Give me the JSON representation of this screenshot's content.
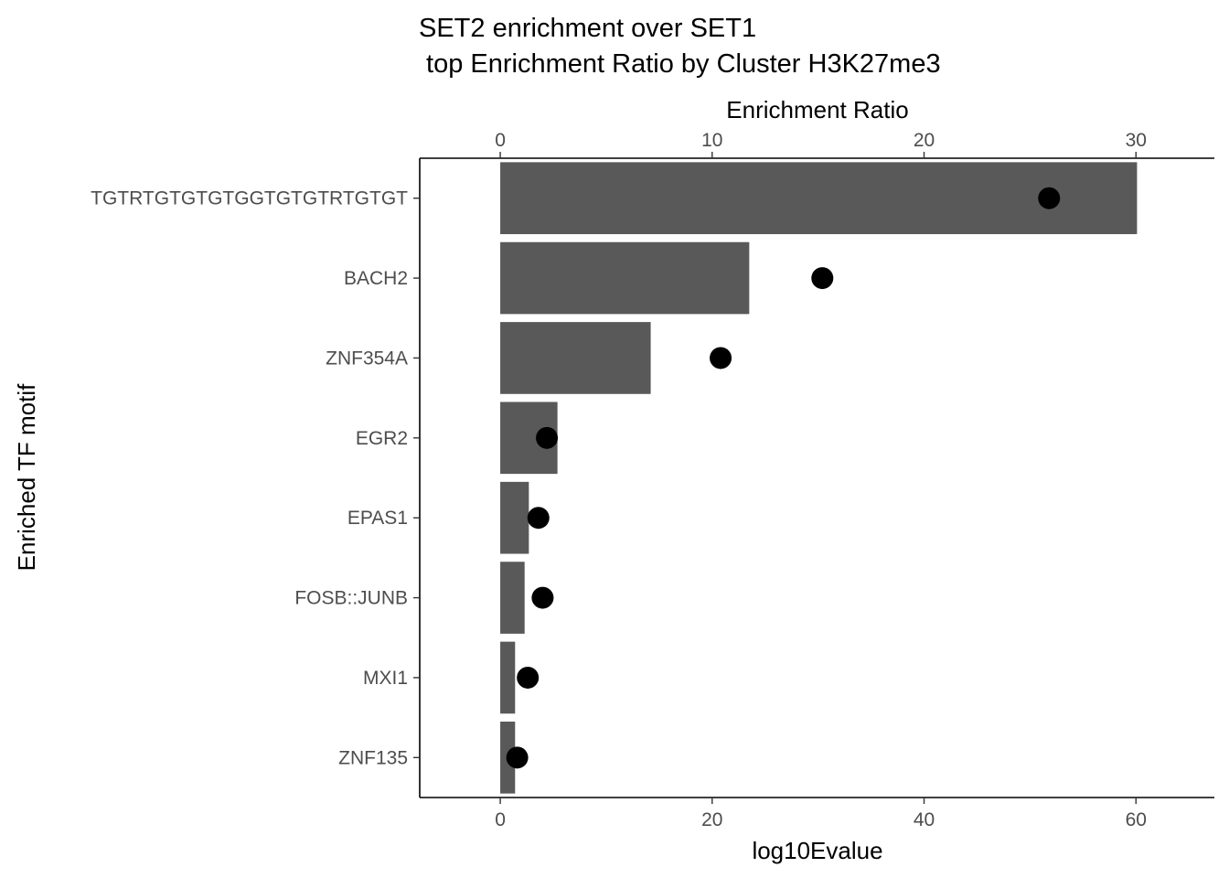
{
  "chart_data": {
    "type": "bar",
    "title": "SET2 enrichment over SET1\n top Enrichment Ratio by Cluster H3K27me3",
    "title_lines": [
      "SET2 enrichment over SET1",
      " top Enrichment Ratio by Cluster H3K27me3"
    ],
    "xlabel": "log10Evalue",
    "x2label": "Enrichment Ratio",
    "ylabel": "Enriched TF motif",
    "categories": [
      "TGTRTGTGTGTGGTGTGTRTGTGT",
      "BACH2",
      "ZNF354A",
      "EGR2",
      "EPAS1",
      "FOSB::JUNB",
      "MXI1",
      "ZNF135"
    ],
    "bars": {
      "name": "log10Evalue",
      "values": [
        60.1,
        23.5,
        14.2,
        5.4,
        2.7,
        2.3,
        1.4,
        1.4
      ],
      "color": "#595959"
    },
    "points": {
      "name": "Enrichment Ratio",
      "values": [
        25.9,
        15.2,
        10.4,
        2.2,
        1.8,
        2.0,
        1.3,
        0.8
      ],
      "color": "#000000"
    },
    "xlim": [
      -7.6,
      67.4
    ],
    "x_ticks": [
      0,
      20,
      40,
      60
    ],
    "x2lim": [
      -3.8,
      33.7
    ],
    "x2_ticks": [
      0,
      10,
      20,
      30
    ],
    "grid": false,
    "legend": "none"
  }
}
